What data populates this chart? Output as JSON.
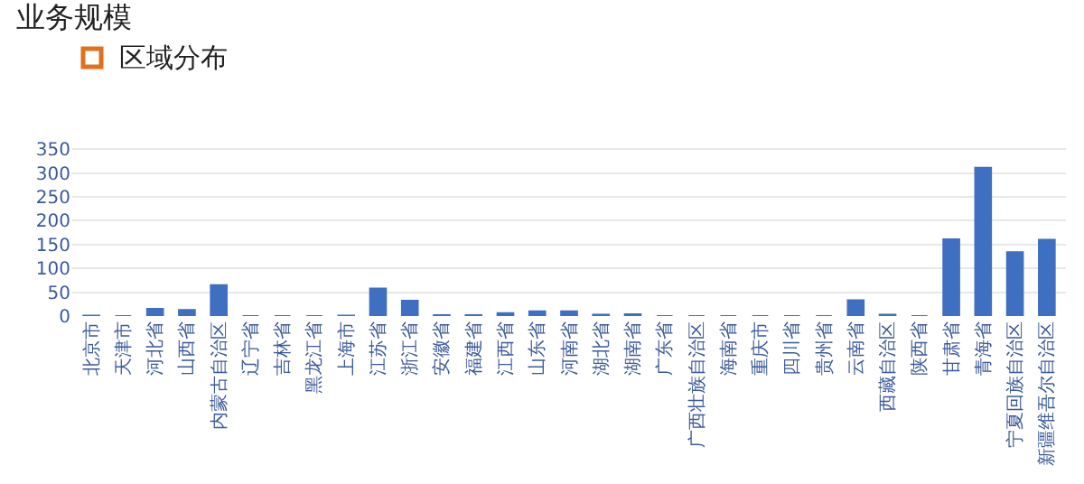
{
  "chart_data": {
    "type": "bar",
    "title": "业务规模",
    "subtitle": "区域分布",
    "categories": [
      "北京市",
      "天津市",
      "河北省",
      "山西省",
      "内蒙古自治区",
      "辽宁省",
      "吉林省",
      "黑龙江省",
      "上海市",
      "江苏省",
      "浙江省",
      "安徽省",
      "福建省",
      "江西省",
      "山东省",
      "河南省",
      "湖北省",
      "湖南省",
      "广东省",
      "广西壮族自治区",
      "海南省",
      "重庆市",
      "四川省",
      "贵州省",
      "云南省",
      "西藏自治区",
      "陕西省",
      "甘肃省",
      "青海省",
      "宁夏回族自治区",
      "新疆维吾尔自治区"
    ],
    "values": [
      1,
      0,
      15,
      13,
      65,
      0,
      0,
      0,
      1,
      58,
      32,
      2,
      2,
      6,
      10,
      10,
      3,
      4,
      0,
      0,
      0,
      0,
      0,
      0,
      33,
      3,
      0,
      161,
      311,
      134,
      160
    ],
    "color": "#3f6fc0",
    "ylim": [
      0,
      360
    ],
    "yticks": [
      0,
      50,
      100,
      150,
      200,
      250,
      300,
      350
    ],
    "grid": "y"
  }
}
